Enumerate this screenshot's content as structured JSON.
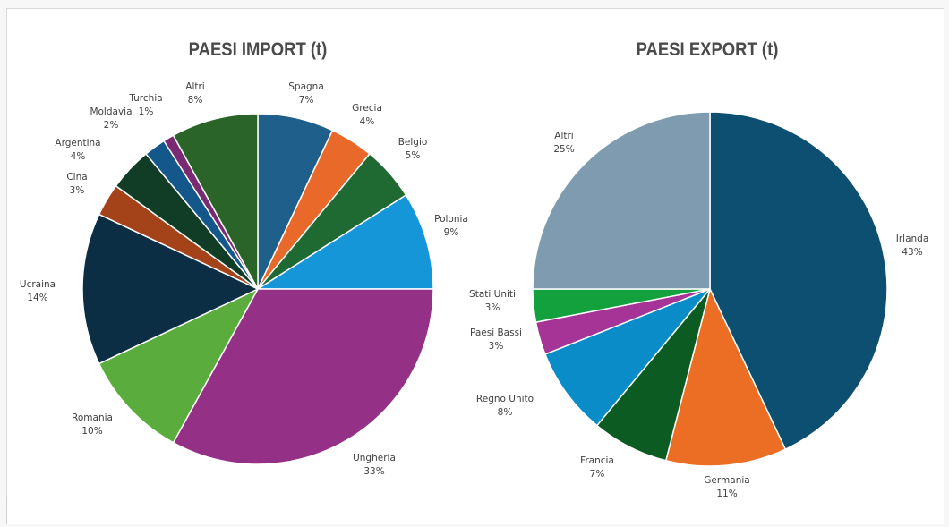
{
  "chart_data": [
    {
      "type": "pie",
      "title": "PAESI IMPORT (t)",
      "categories": [
        "Spagna",
        "Grecia",
        "Belgio",
        "Polonia",
        "Ungheria",
        "Romania",
        "Ucraina",
        "Cina",
        "Argentina",
        "Moldavia",
        "Turchia",
        "Altri"
      ],
      "values": [
        7,
        4,
        5,
        9,
        33,
        10,
        14,
        3,
        4,
        2,
        1,
        8
      ],
      "labels": [
        "7%",
        "4%",
        "5%",
        "9%",
        "33%",
        "10%",
        "14%",
        "3%",
        "4%",
        "2%",
        "1%",
        "8%"
      ],
      "colors": [
        "#1f5f8b",
        "#e8692a",
        "#1f6a32",
        "#1596d8",
        "#953087",
        "#5aad3c",
        "#0b2e45",
        "#a4431a",
        "#113d26",
        "#14578a",
        "#7a2a73",
        "#2a6428"
      ]
    },
    {
      "type": "pie",
      "title": "PAESI EXPORT (t)",
      "categories": [
        "Irlanda",
        "Germania",
        "Francia",
        "Regno Unito",
        "Paesi Bassi",
        "Stati Uniti",
        "Altri"
      ],
      "values": [
        43,
        11,
        7,
        8,
        3,
        3,
        25
      ],
      "labels": [
        "43%",
        "11%",
        "7%",
        "8%",
        "3%",
        "3%",
        "25%"
      ],
      "colors": [
        "#0c4f70",
        "#ec6e24",
        "#0b5b22",
        "#0a8cc8",
        "#a63496",
        "#12a13c",
        "#7f9bb0"
      ]
    }
  ]
}
